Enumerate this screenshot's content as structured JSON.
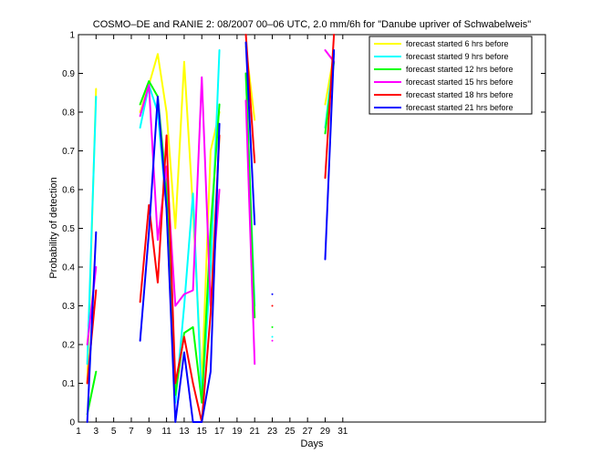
{
  "chart_data": {
    "type": "line",
    "title": "COSMO–DE and RANIE 2: 08/2007 00–06 UTC, 2.0 mm/6h for \"Danube upriver of Schwabelweis\"",
    "xlabel": "Days",
    "ylabel": "Probability of detection",
    "x": [
      1,
      2,
      3,
      4,
      5,
      6,
      7,
      8,
      9,
      10,
      11,
      12,
      13,
      14,
      15,
      16,
      17,
      18,
      19,
      20,
      21,
      22,
      23,
      24,
      25,
      26,
      27,
      28,
      29,
      30,
      31
    ],
    "xlim": [
      1,
      54
    ],
    "xticks": [
      1,
      3,
      5,
      7,
      9,
      11,
      13,
      15,
      17,
      19,
      21,
      23,
      25,
      27,
      29,
      31
    ],
    "ylim": [
      0,
      1
    ],
    "yticks": [
      0,
      0.1,
      0.2,
      0.3,
      0.4,
      0.5,
      0.6,
      0.7,
      0.8,
      0.9,
      1
    ],
    "legend": "upper right",
    "series": [
      {
        "name": "forecast started 6 hrs before",
        "color": "#ffff00",
        "values": [
          null,
          0.1,
          0.86,
          null,
          null,
          null,
          null,
          0.8,
          0.87,
          0.95,
          0.8,
          0.5,
          0.93,
          0.55,
          0.1,
          0.7,
          0.8,
          null,
          null,
          0.97,
          0.78,
          null,
          null,
          null,
          null,
          null,
          null,
          null,
          0.82,
          0.95,
          null
        ]
      },
      {
        "name": "forecast started 9 hrs before",
        "color": "#00ffff",
        "values": [
          null,
          0.15,
          0.84,
          null,
          null,
          null,
          null,
          0.76,
          0.87,
          0.8,
          0.55,
          0.05,
          0.3,
          0.59,
          0.05,
          0.4,
          0.96,
          null,
          null,
          0.9,
          0.3,
          null,
          0.22,
          null,
          null,
          null,
          null,
          null,
          0.76,
          0.95,
          null
        ]
      },
      {
        "name": "forecast started 12 hrs before",
        "color": "#00ff00",
        "values": [
          null,
          0.02,
          0.13,
          null,
          null,
          null,
          null,
          0.82,
          0.88,
          0.84,
          0.6,
          0.07,
          0.23,
          0.245,
          0.05,
          0.5,
          0.82,
          null,
          null,
          0.9,
          0.27,
          null,
          0.245,
          null,
          null,
          null,
          null,
          null,
          0.745,
          0.93,
          null
        ]
      },
      {
        "name": "forecast started 15 hrs before",
        "color": "#ff00ff",
        "values": [
          null,
          0.2,
          0.4,
          null,
          null,
          null,
          null,
          0.79,
          0.87,
          0.47,
          0.66,
          0.3,
          0.33,
          0.34,
          0.89,
          0.3,
          0.6,
          null,
          null,
          0.83,
          0.15,
          null,
          0.21,
          null,
          null,
          null,
          null,
          null,
          0.96,
          0.93,
          null
        ]
      },
      {
        "name": "forecast started 18 hrs before",
        "color": "#ff0000",
        "values": [
          null,
          0.1,
          0.34,
          null,
          null,
          null,
          null,
          0.31,
          0.56,
          0.36,
          0.74,
          0.1,
          0.22,
          0.1,
          0.0,
          0.28,
          0.74,
          null,
          null,
          1.0,
          0.67,
          null,
          0.3,
          null,
          null,
          null,
          null,
          null,
          0.63,
          1.0,
          null
        ]
      },
      {
        "name": "forecast started 21 hrs before",
        "color": "#0000ff",
        "values": [
          null,
          0.0,
          0.49,
          null,
          null,
          null,
          null,
          0.21,
          0.49,
          0.84,
          0.55,
          0.0,
          0.18,
          0.0,
          0.0,
          0.13,
          0.77,
          null,
          null,
          0.98,
          0.51,
          null,
          0.33,
          null,
          null,
          null,
          null,
          null,
          0.42,
          0.96,
          null
        ]
      }
    ]
  }
}
